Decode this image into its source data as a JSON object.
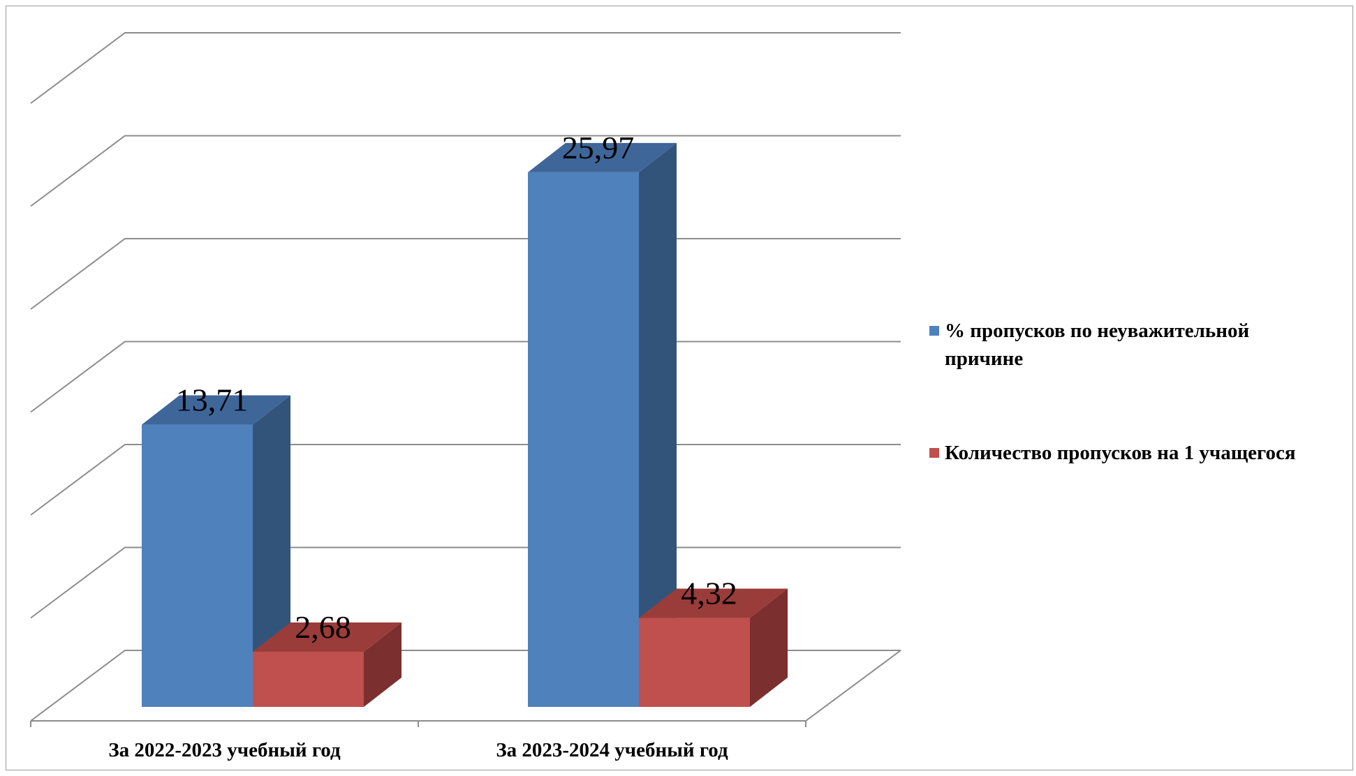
{
  "chart_data": {
    "type": "bar",
    "style": "3d-clustered-column",
    "categories": [
      "За 2022-2023 учебный год",
      "За  2023-2024 учебный год"
    ],
    "series": [
      {
        "name_lines": [
          "% пропусков по неуважительной",
          "причине"
        ],
        "values": [
          13.71,
          25.97
        ],
        "labels": [
          "13,71",
          "25,97"
        ],
        "color": "#4F81BD",
        "side_color": "#33547A",
        "top_color": "#3F6699"
      },
      {
        "name_lines": [
          "Количество пропусков на 1 учащегося"
        ],
        "values": [
          2.68,
          4.32
        ],
        "labels": [
          "2,68",
          "4,32"
        ],
        "color": "#C0504D",
        "side_color": "#7B2F2E",
        "top_color": "#9A3C3A"
      }
    ],
    "ylim": [
      0,
      30
    ],
    "y_gridlines": [
      0,
      5,
      10,
      15,
      20,
      25,
      30
    ],
    "y_tick_labels_shown": false,
    "grid": true,
    "legend": "right"
  }
}
